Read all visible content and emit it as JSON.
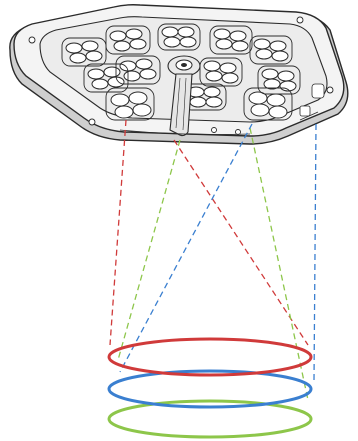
{
  "colors": {
    "background": "#ffffff",
    "outline": "#2b2b2b",
    "device_fill": "#f4f4f4",
    "device_shadow": "#cfcfcf",
    "lens_fill": "#e9e9e9",
    "red": "#d03a3a",
    "green": "#8dc64a",
    "blue": "#3a7fd0"
  },
  "icons": {
    "device": "overhead-led-light-unit-icon",
    "beam_red": "red-beam-icon",
    "beam_green": "green-beam-icon",
    "beam_blue": "blue-beam-icon",
    "spot_red": "red-light-spot-icon",
    "spot_blue": "blue-light-spot-icon",
    "spot_green": "green-light-spot-icon"
  }
}
